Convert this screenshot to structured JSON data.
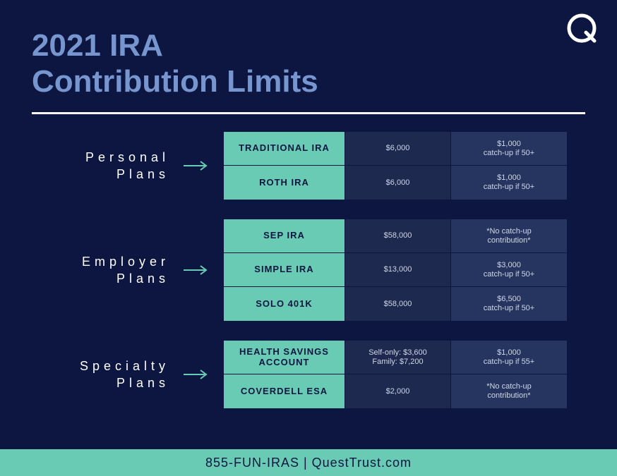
{
  "colors": {
    "bg": "#0c1640",
    "title": "#7795cf",
    "accent": "#6acbb5",
    "cell_mid": "#1d294f",
    "cell_dark": "#26355f",
    "text_light": "#cfd6e6"
  },
  "title_line1": "2021 IRA",
  "title_line2": "Contribution Limits",
  "sections": [
    {
      "label": "Personal\nPlans",
      "rows": [
        {
          "name": "TRADITIONAL IRA",
          "limit": "$6,000",
          "catchup": "$1,000\ncatch-up if 50+"
        },
        {
          "name": "ROTH IRA",
          "limit": "$6,000",
          "catchup": "$1,000\ncatch-up if 50+"
        }
      ]
    },
    {
      "label": "Employer\nPlans",
      "rows": [
        {
          "name": "SEP IRA",
          "limit": "$58,000",
          "catchup": "*No catch-up\ncontribution*"
        },
        {
          "name": "SIMPLE IRA",
          "limit": "$13,000",
          "catchup": "$3,000\ncatch-up if 50+"
        },
        {
          "name": "SOLO 401K",
          "limit": "$58,000",
          "catchup": "$6,500\ncatch-up if 50+"
        }
      ]
    },
    {
      "label": "Specialty\nPlans",
      "rows": [
        {
          "name": "HEALTH SAVINGS\nACCOUNT",
          "limit": "Self-only: $3,600\nFamily: $7,200",
          "catchup": "$1,000\ncatch-up if 55+"
        },
        {
          "name": "COVERDELL ESA",
          "limit": "$2,000",
          "catchup": "*No catch-up\ncontribution*"
        }
      ]
    }
  ],
  "footer": "855-FUN-IRAS | QuestTrust.com"
}
